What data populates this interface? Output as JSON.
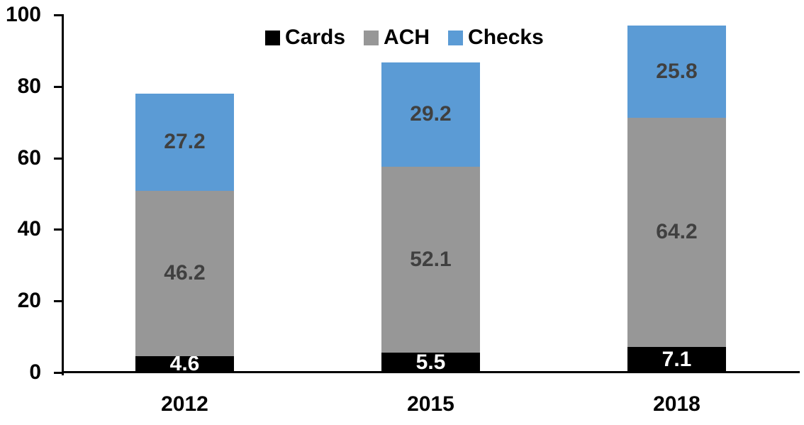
{
  "chart_data": {
    "type": "bar",
    "stacked": true,
    "categories": [
      "2012",
      "2015",
      "2018"
    ],
    "series": [
      {
        "name": "Cards",
        "color": "#000000",
        "label_color": "#FFFFFF",
        "values": [
          4.6,
          5.5,
          7.1
        ]
      },
      {
        "name": "ACH",
        "color": "#979797",
        "label_color": "#404040",
        "values": [
          46.2,
          52.1,
          64.2
        ]
      },
      {
        "name": "Checks",
        "color": "#5B9BD5",
        "label_color": "#404040",
        "values": [
          27.2,
          29.2,
          25.8
        ]
      }
    ],
    "stack_totals": [
      78.0,
      86.8,
      97.1
    ],
    "title": "",
    "xlabel": "",
    "ylabel": "",
    "ylim": [
      0,
      100
    ],
    "yticks": [
      0,
      20,
      40,
      60,
      80,
      100
    ],
    "grid": false,
    "value_labels": true,
    "value_label_decimals": 1,
    "legend_position": "top-center",
    "axis_color": "#000000"
  }
}
